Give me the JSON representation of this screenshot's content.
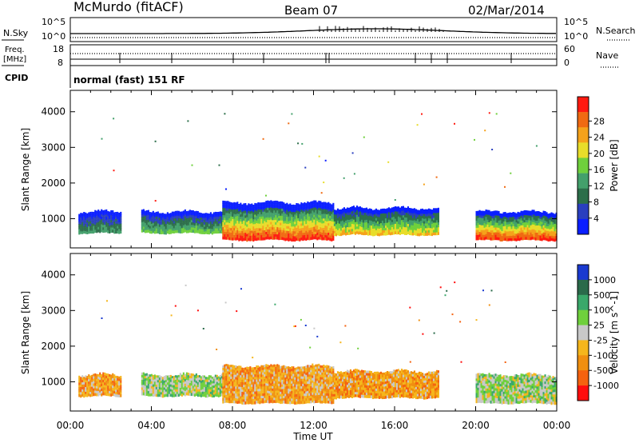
{
  "header": {
    "station": "McMurdo (fitACF)",
    "beam": "Beam 07",
    "date": "02/Mar/2014"
  },
  "noise_panel": {
    "left_label": "N.Sky",
    "right_label": "N.Search",
    "left_ticks": [
      "10^5",
      "10^0"
    ],
    "right_ticks": [
      "10^5",
      "10^0"
    ]
  },
  "freq_panel": {
    "left_label_line1": "Freq.",
    "left_label_line2": "[MHz]",
    "left_ticks": [
      "18",
      "8"
    ],
    "right_label": "Nave",
    "right_ticks": [
      "60",
      "0"
    ]
  },
  "cpid": {
    "label": "CPID",
    "value": "normal (fast) 151 RF"
  },
  "colors": {
    "power_scale": [
      "#0a1eff",
      "#2a3fbf",
      "#2c6e4a",
      "#43a06b",
      "#6fd03c",
      "#e8dd2a",
      "#f5a21b",
      "#f06a12",
      "#ff1a10"
    ],
    "velocity_scale": [
      "#ff0d0d",
      "#f5620f",
      "#f08f10",
      "#f5b61c",
      "#c8c8c8",
      "#6fd03c",
      "#3aa86a",
      "#2a6a4a",
      "#1a3ad0"
    ]
  },
  "chart_data": [
    {
      "type": "heatmap",
      "name": "power",
      "ylabel": "Slant Range [km]",
      "xlabel": "Time UT",
      "x_ticks": [
        "00:00",
        "04:00",
        "08:00",
        "12:00",
        "16:00",
        "20:00",
        "00:00"
      ],
      "xlim": [
        0,
        24
      ],
      "y_ticks": [
        1000,
        2000,
        3000,
        4000
      ],
      "ylim": [
        180,
        4600
      ],
      "colorbar": {
        "label": "Power [dB]",
        "ticks": [
          "4",
          "8",
          "12",
          "16",
          "20",
          "24",
          "28"
        ]
      },
      "echo_regions": [
        {
          "t_start": 0.4,
          "t_end": 2.5,
          "r_low": 600,
          "r_high": 1200,
          "peak_db": 12
        },
        {
          "t_start": 3.5,
          "t_end": 7.5,
          "r_low": 600,
          "r_high": 1200,
          "peak_db": 16
        },
        {
          "t_start": 7.5,
          "t_end": 13.0,
          "r_low": 400,
          "r_high": 1450,
          "peak_db": 30
        },
        {
          "t_start": 13.0,
          "t_end": 18.2,
          "r_low": 550,
          "r_high": 1300,
          "peak_db": 22
        },
        {
          "t_start": 20.0,
          "t_end": 24.0,
          "r_low": 400,
          "r_high": 1200,
          "peak_db": 30
        }
      ]
    },
    {
      "type": "heatmap",
      "name": "velocity",
      "ylabel": "Slant Range [km]",
      "xlabel": "Time UT",
      "x_ticks": [
        "00:00",
        "04:00",
        "08:00",
        "12:00",
        "16:00",
        "20:00",
        "00:00"
      ],
      "xlim": [
        0,
        24
      ],
      "y_ticks": [
        1000,
        2000,
        3000,
        4000
      ],
      "ylim": [
        180,
        4600
      ],
      "colorbar": {
        "label": "Velocity [m s^-1]",
        "ticks": [
          "1000",
          "500",
          "100",
          "25",
          "-25",
          "-100",
          "-500",
          "-1000"
        ]
      },
      "echo_regions": [
        {
          "t_start": 0.4,
          "t_end": 2.5,
          "r_low": 600,
          "r_high": 1200,
          "velocity": -50
        },
        {
          "t_start": 3.5,
          "t_end": 7.5,
          "r_low": 600,
          "r_high": 1200,
          "velocity": 60
        },
        {
          "t_start": 7.5,
          "t_end": 13.0,
          "r_low": 400,
          "r_high": 1450,
          "velocity": -80
        },
        {
          "t_start": 13.0,
          "t_end": 18.2,
          "r_low": 550,
          "r_high": 1300,
          "velocity": -60
        },
        {
          "t_start": 20.0,
          "t_end": 24.0,
          "r_low": 400,
          "r_high": 1200,
          "velocity": 40
        }
      ]
    }
  ]
}
